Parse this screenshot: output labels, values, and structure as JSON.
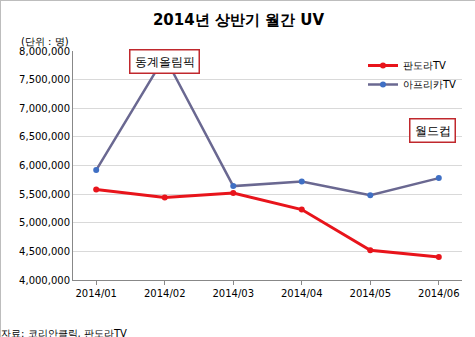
{
  "chart_data": {
    "type": "line",
    "title": "2014년 상반기 월간 UV",
    "y_label": "(단위 : 명)",
    "categories": [
      "2014/01",
      "2014/02",
      "2014/03",
      "2014/04",
      "2014/05",
      "2014/06"
    ],
    "series": [
      {
        "name": "판도라TV",
        "color": "#e8141b",
        "marker": "circle",
        "values": [
          5580000,
          5440000,
          5520000,
          5230000,
          4520000,
          4400000
        ]
      },
      {
        "name": "아프리카TV",
        "color": "#6a6891",
        "marker": "circle",
        "values": [
          5920000,
          7900000,
          5640000,
          5720000,
          5480000,
          5780000
        ]
      }
    ],
    "ylim": [
      4000000,
      8000000
    ],
    "yticks": [
      {
        "value": 4000000,
        "label": "4,000,000"
      },
      {
        "value": 4500000,
        "label": "4,500,000"
      },
      {
        "value": 5000000,
        "label": "5,000,000"
      },
      {
        "value": 5500000,
        "label": "5,500,000"
      },
      {
        "value": 6000000,
        "label": "6,000,000"
      },
      {
        "value": 6500000,
        "label": "6,500,000"
      },
      {
        "value": 7000000,
        "label": "7,000,000"
      },
      {
        "value": 7500000,
        "label": "7,500,000"
      },
      {
        "value": 8000000,
        "label": "8,000,000"
      }
    ],
    "grid": true,
    "legend": "top right",
    "annotations": [
      "동계올림픽",
      "월드컵"
    ],
    "source": "자료: 코리안클릭, 판도라TV"
  }
}
